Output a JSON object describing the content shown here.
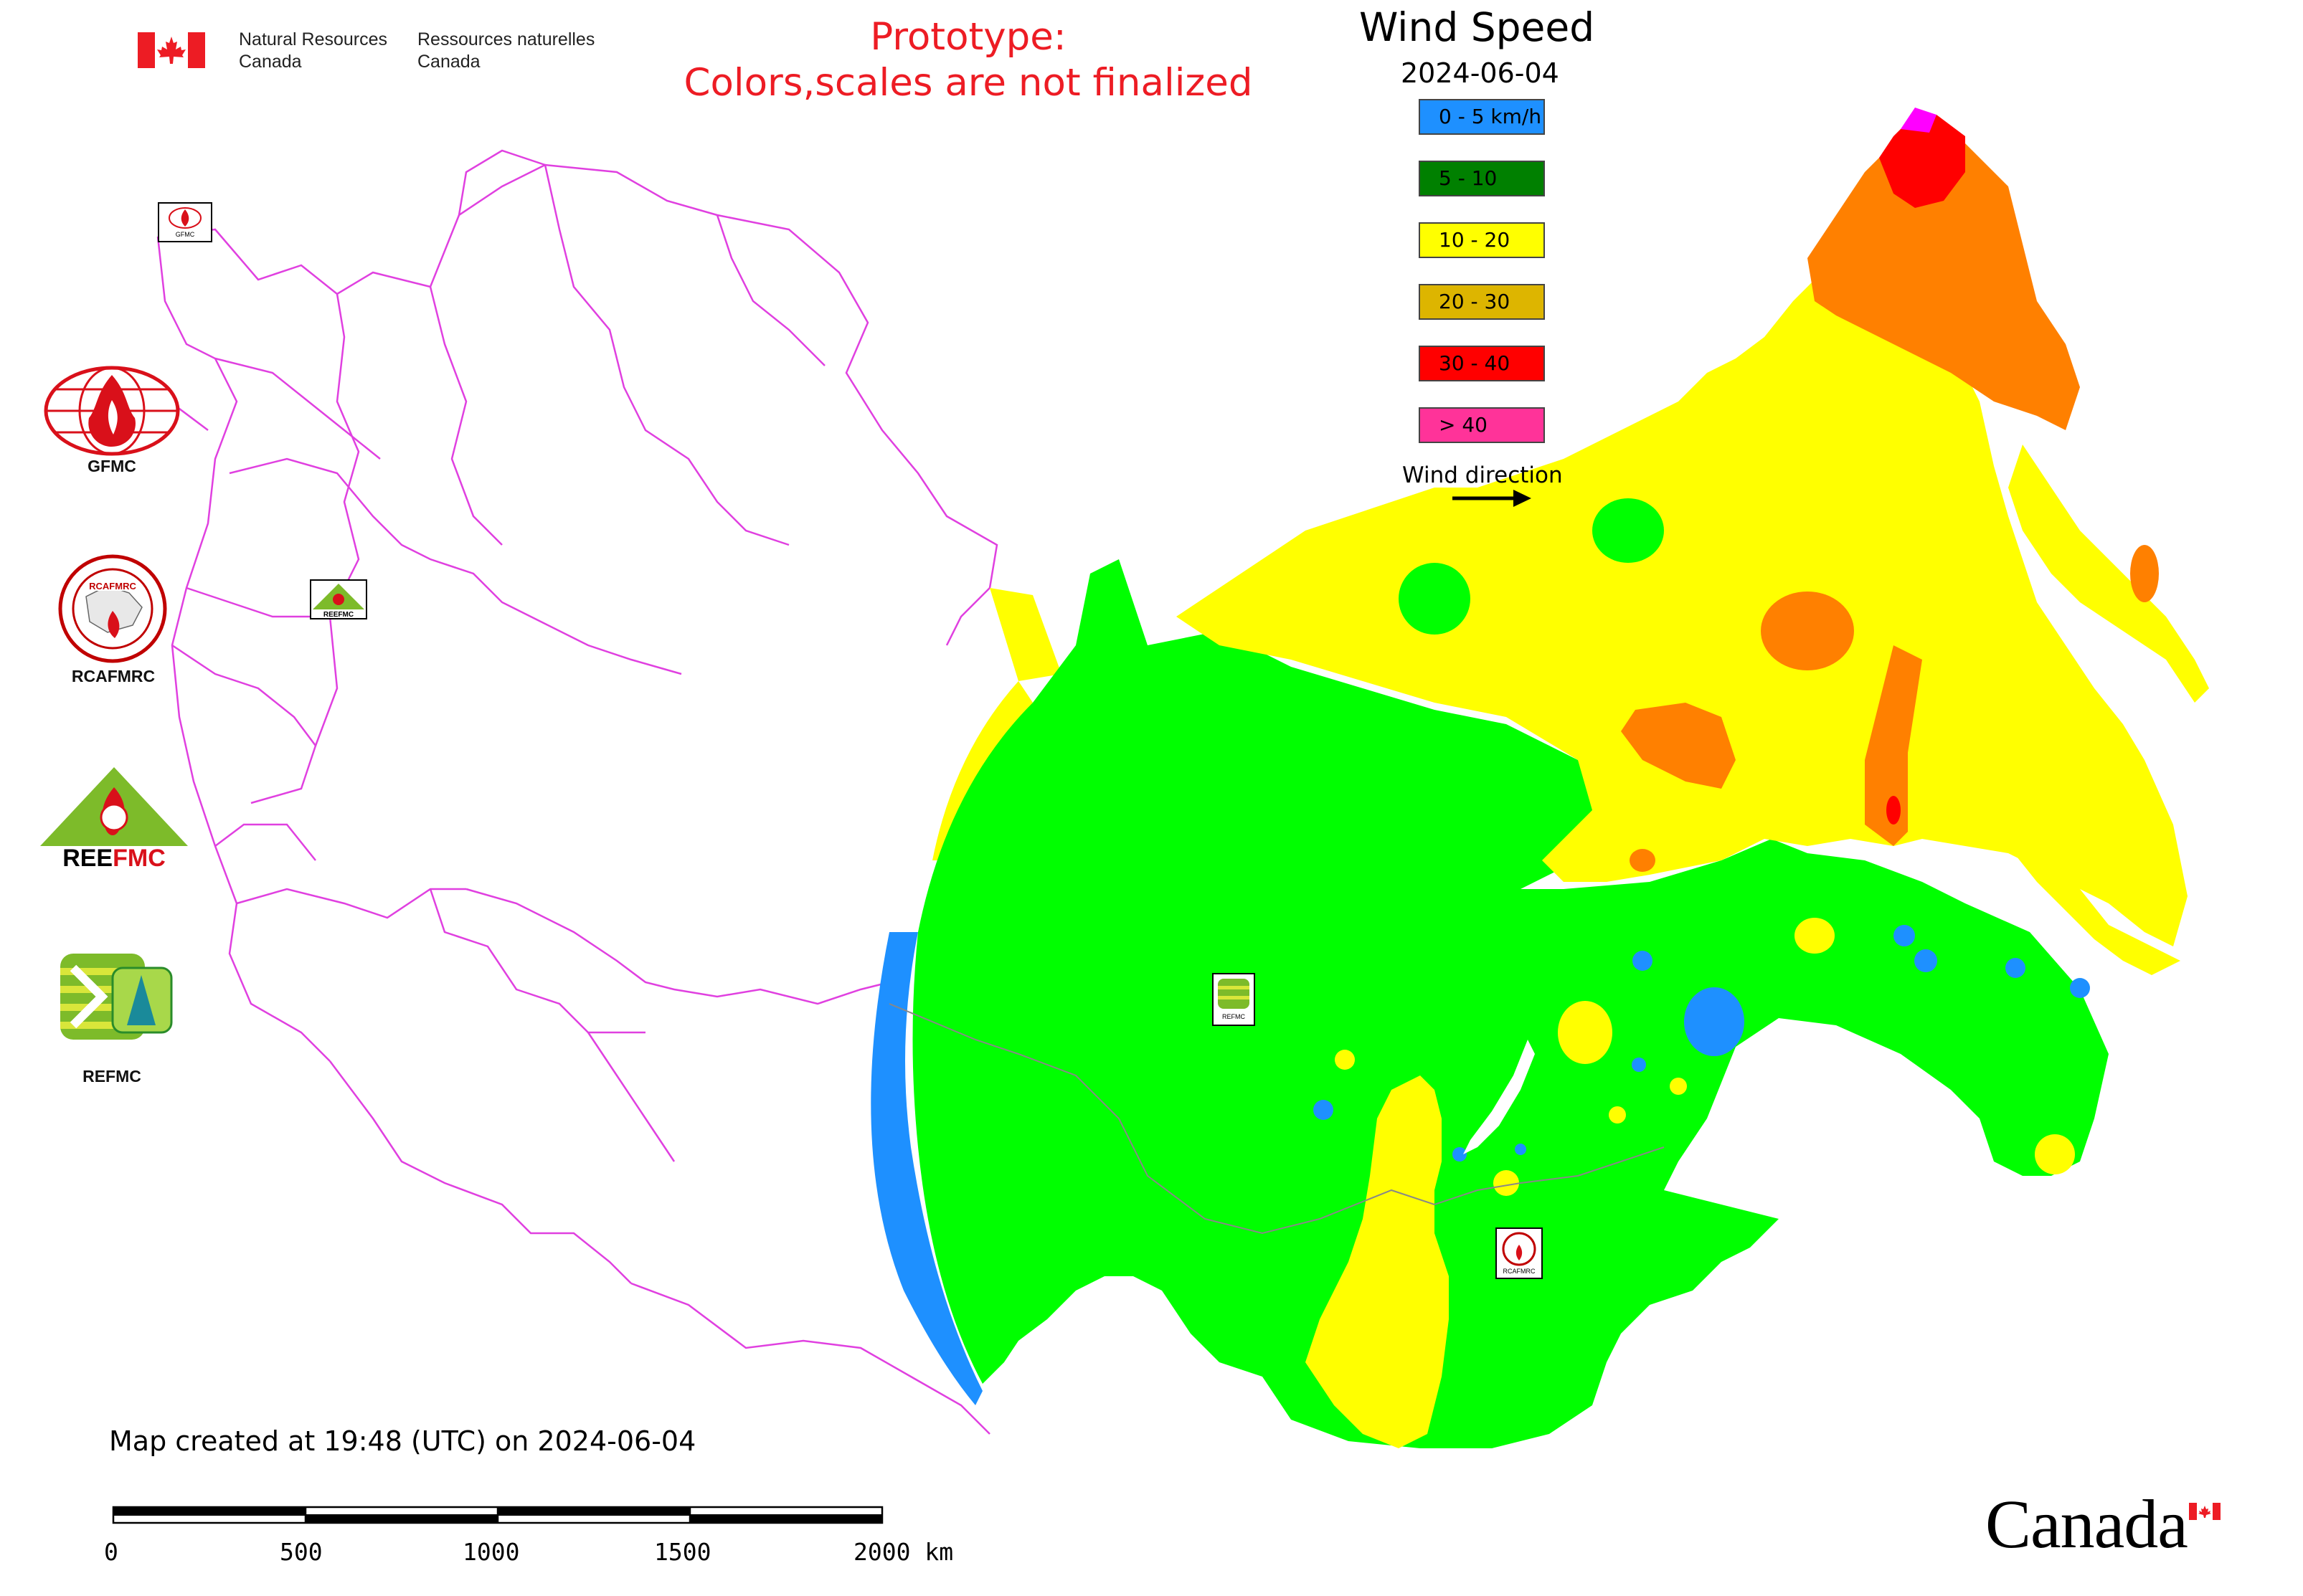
{
  "header": {
    "agency_en": "Natural Resources\nCanada",
    "agency_fr": "Ressources naturelles\nCanada",
    "prototype_notice": "Prototype:\nColors,scales are not finalized"
  },
  "legend": {
    "title": "Wind Speed",
    "date": "2024-06-04",
    "items": [
      {
        "label": "0 - 5 km/h",
        "color": "#1e90ff"
      },
      {
        "label": "5 - 10",
        "color": "#008000"
      },
      {
        "label": "10 - 20",
        "color": "#ffff00"
      },
      {
        "label": "20 - 30",
        "color": "#ddb500"
      },
      {
        "label": "30 - 40",
        "color": "#ff0000"
      },
      {
        "label": "> 40",
        "color": "#ff3399"
      }
    ],
    "wind_direction_label": "Wind direction"
  },
  "logos": [
    {
      "name": "GFMC",
      "label": "GFMC"
    },
    {
      "name": "RCAFMRC",
      "label": "RCAFMRC"
    },
    {
      "name": "REEFMC",
      "label": ""
    },
    {
      "name": "REFMC",
      "label": "REFMC"
    }
  ],
  "map_markers": {
    "gfmc_badge": "GFMC",
    "reefmc_badge": "REEFMC",
    "refmc_badge": "REFMC",
    "rcafmrc_badge": "RCAFMRC"
  },
  "footer": {
    "created_text": "Map created at 19:48 (UTC) on 2024-06-04",
    "scale_labels": [
      "0",
      "500",
      "1000",
      "1500",
      "2000 km"
    ]
  },
  "wordmark": "Canada",
  "colors": {
    "accent_red": "#ed1c24",
    "border_magenta": "#e040e0",
    "light_green": "#00ff00",
    "blue": "#1e90ff",
    "yellow": "#ffff00",
    "orange": "#ff8000",
    "red": "#ff0000",
    "magenta": "#ff00ff"
  }
}
